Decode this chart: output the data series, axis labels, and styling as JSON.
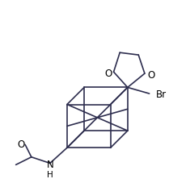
{
  "bg_color": "#ffffff",
  "line_color": "#2d2d4e",
  "text_color": "#000000",
  "figsize": [
    2.09,
    2.28
  ],
  "dpi": 100,
  "label_Br": "Br",
  "label_O_left": "O",
  "label_O_right": "O",
  "label_N": "N",
  "label_N_sub": "H",
  "label_O_carbonyl": "O",
  "lw": 1.2
}
